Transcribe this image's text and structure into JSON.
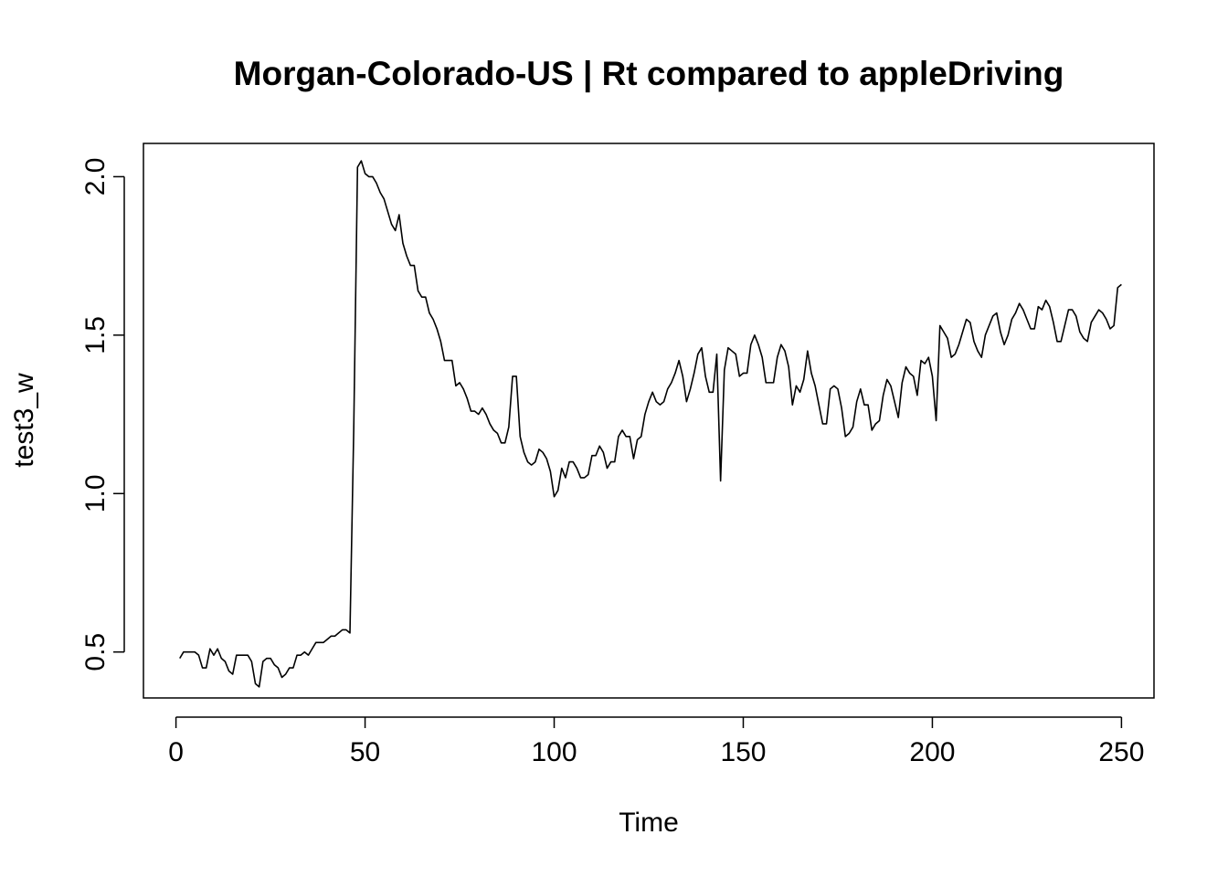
{
  "chart_data": {
    "type": "line",
    "title": "Morgan-Colorado-US | Rt compared to appleDriving",
    "xlabel": "Time",
    "ylabel": "test3_w",
    "xlim": [
      -8.6,
      258.6
    ],
    "ylim": [
      0.355,
      2.105
    ],
    "xticks": [
      0,
      50,
      100,
      150,
      200,
      250
    ],
    "xtick_labels": [
      "0",
      "50",
      "100",
      "150",
      "200",
      "250"
    ],
    "yticks": [
      0.5,
      1.0,
      1.5,
      2.0
    ],
    "ytick_labels": [
      "0.5",
      "1.0",
      "1.5",
      "2.0"
    ],
    "grid": false,
    "legend": "none",
    "color": "#000000",
    "series": [
      {
        "x_start": 1,
        "values": [
          0.48,
          0.5,
          0.5,
          0.5,
          0.5,
          0.49,
          0.45,
          0.45,
          0.51,
          0.49,
          0.51,
          0.48,
          0.47,
          0.44,
          0.43,
          0.49,
          0.49,
          0.49,
          0.49,
          0.47,
          0.4,
          0.39,
          0.47,
          0.48,
          0.48,
          0.46,
          0.45,
          0.42,
          0.43,
          0.45,
          0.45,
          0.49,
          0.49,
          0.5,
          0.49,
          0.51,
          0.53,
          0.53,
          0.53,
          0.54,
          0.55,
          0.55,
          0.56,
          0.57,
          0.57,
          0.56,
          1.2,
          2.03,
          2.05,
          2.01,
          2.0,
          2.0,
          1.98,
          1.95,
          1.93,
          1.89,
          1.85,
          1.83,
          1.88,
          1.79,
          1.75,
          1.72,
          1.72,
          1.64,
          1.62,
          1.62,
          1.57,
          1.55,
          1.52,
          1.48,
          1.42,
          1.42,
          1.42,
          1.34,
          1.35,
          1.33,
          1.3,
          1.26,
          1.26,
          1.25,
          1.27,
          1.25,
          1.22,
          1.2,
          1.19,
          1.16,
          1.16,
          1.21,
          1.37,
          1.37,
          1.18,
          1.13,
          1.1,
          1.09,
          1.1,
          1.14,
          1.13,
          1.11,
          1.07,
          0.99,
          1.01,
          1.08,
          1.05,
          1.1,
          1.1,
          1.08,
          1.05,
          1.05,
          1.06,
          1.12,
          1.12,
          1.15,
          1.13,
          1.08,
          1.1,
          1.1,
          1.18,
          1.2,
          1.18,
          1.18,
          1.11,
          1.17,
          1.18,
          1.25,
          1.29,
          1.32,
          1.29,
          1.28,
          1.29,
          1.33,
          1.35,
          1.38,
          1.42,
          1.37,
          1.29,
          1.33,
          1.38,
          1.44,
          1.46,
          1.37,
          1.32,
          1.32,
          1.44,
          1.04,
          1.39,
          1.46,
          1.45,
          1.44,
          1.37,
          1.38,
          1.38,
          1.47,
          1.5,
          1.47,
          1.43,
          1.35,
          1.35,
          1.35,
          1.43,
          1.47,
          1.45,
          1.4,
          1.28,
          1.34,
          1.32,
          1.36,
          1.45,
          1.38,
          1.34,
          1.28,
          1.22,
          1.22,
          1.33,
          1.34,
          1.33,
          1.27,
          1.18,
          1.19,
          1.21,
          1.29,
          1.33,
          1.28,
          1.28,
          1.2,
          1.22,
          1.23,
          1.31,
          1.36,
          1.34,
          1.29,
          1.24,
          1.35,
          1.4,
          1.38,
          1.37,
          1.31,
          1.42,
          1.41,
          1.43,
          1.37,
          1.23,
          1.53,
          1.51,
          1.49,
          1.43,
          1.44,
          1.47,
          1.51,
          1.55,
          1.54,
          1.48,
          1.45,
          1.43,
          1.5,
          1.53,
          1.56,
          1.57,
          1.51,
          1.47,
          1.5,
          1.55,
          1.57,
          1.6,
          1.58,
          1.55,
          1.52,
          1.52,
          1.59,
          1.58,
          1.61,
          1.59,
          1.54,
          1.48,
          1.48,
          1.53,
          1.58,
          1.58,
          1.56,
          1.51,
          1.49,
          1.48,
          1.54,
          1.56,
          1.58,
          1.57,
          1.55,
          1.52,
          1.53,
          1.65,
          1.66
        ]
      }
    ]
  }
}
